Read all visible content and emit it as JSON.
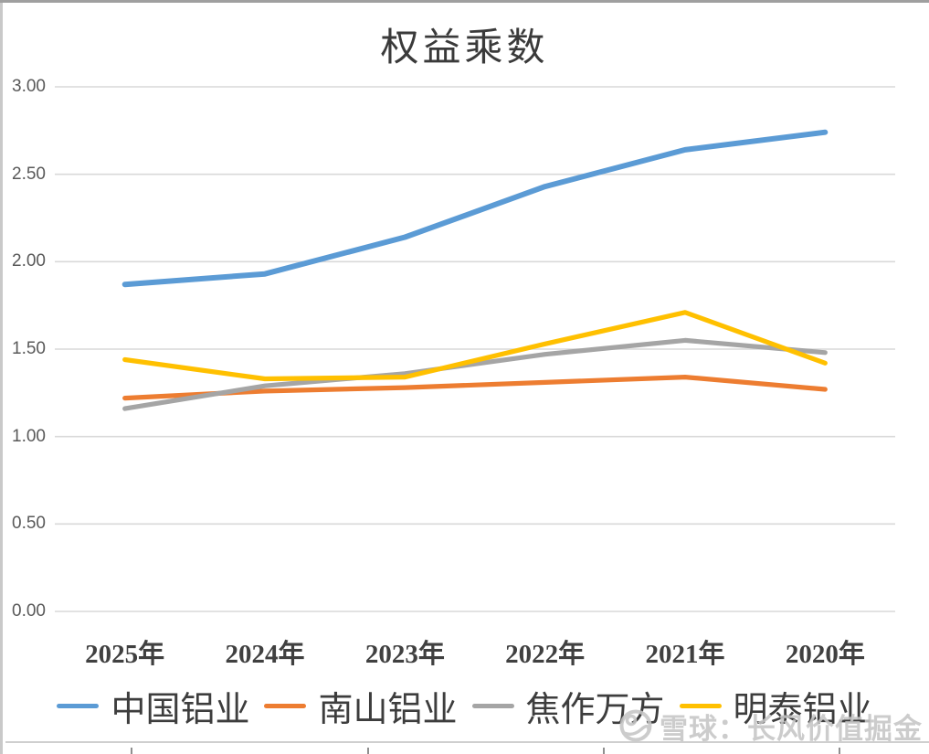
{
  "page": {
    "background": "#ffffff",
    "border_top_color": "#9f9f9f",
    "border_left_color": "#c9c9c9"
  },
  "chart_data": {
    "type": "line",
    "title": "权益乘数",
    "categories": [
      "2025年",
      "2024年",
      "2023年",
      "2022年",
      "2021年",
      "2020年"
    ],
    "series": [
      {
        "name": "中国铝业",
        "color": "#5B9BD5",
        "values": [
          1.87,
          1.93,
          2.14,
          2.43,
          2.64,
          2.74
        ]
      },
      {
        "name": "南山铝业",
        "color": "#ED7D31",
        "values": [
          1.22,
          1.26,
          1.28,
          1.31,
          1.34,
          1.27
        ]
      },
      {
        "name": "焦作万方",
        "color": "#A5A5A5",
        "values": [
          1.16,
          1.29,
          1.36,
          1.47,
          1.55,
          1.48
        ]
      },
      {
        "name": "明泰铝业",
        "color": "#FFC000",
        "values": [
          1.44,
          1.33,
          1.34,
          1.53,
          1.71,
          1.42
        ]
      }
    ],
    "ylim": [
      0,
      3
    ],
    "ytick_step": 0.5,
    "ytick_labels": [
      "0.00",
      "0.50",
      "1.00",
      "1.50",
      "2.00",
      "2.50",
      "3.00"
    ],
    "grid": true,
    "gridline_color": "#d9d9d9",
    "legend_position": "bottom",
    "axis_label_color": "#595959",
    "category_label_color": "#404040"
  },
  "watermark": {
    "logo": "xueqiu-logo",
    "text": "雪球：长风价值掘金"
  }
}
